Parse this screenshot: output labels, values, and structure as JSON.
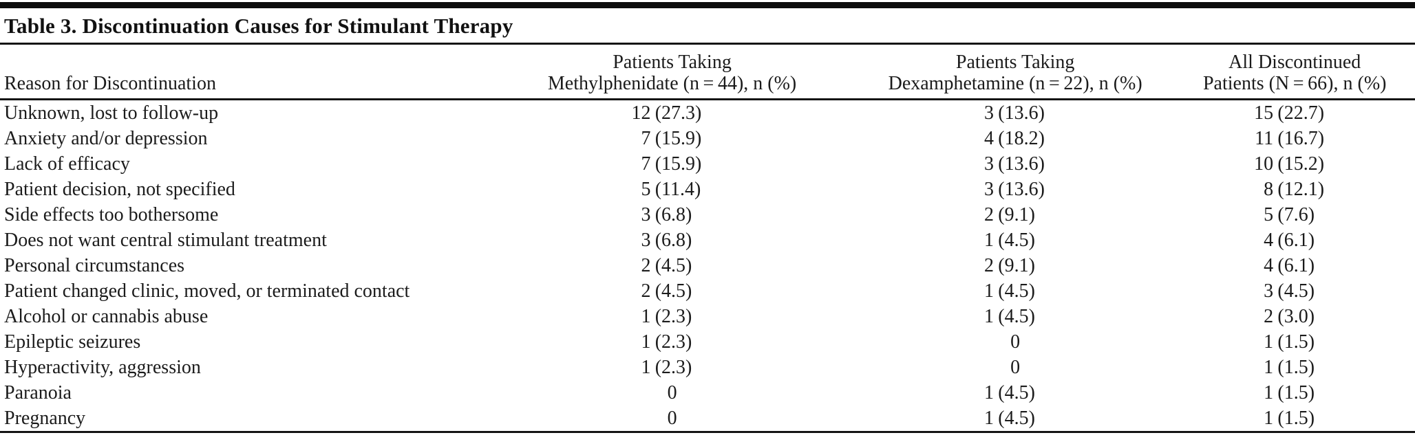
{
  "table": {
    "title": "Table 3. Discontinuation Causes for Stimulant Therapy",
    "header": {
      "reason": "Reason for Discontinuation",
      "col2_line1": "Patients Taking",
      "col2_line2": "Methylphenidate (n = 44), n (%)",
      "col3_line1": "Patients Taking",
      "col3_line2": "Dexamphetamine (n = 22), n (%)",
      "col4_line1": "All Discontinued",
      "col4_line2": "Patients (N = 66), n (%)"
    },
    "rows": [
      [
        "Unknown, lost to follow-up",
        "12 (27.3)",
        "3 (13.6)",
        "15 (22.7)"
      ],
      [
        "Anxiety and/or depression",
        "7 (15.9)",
        "4 (18.2)",
        "11 (16.7)"
      ],
      [
        "Lack of efficacy",
        "7 (15.9)",
        "3 (13.6)",
        "10 (15.2)"
      ],
      [
        "Patient decision, not specified",
        "5 (11.4)",
        "3 (13.6)",
        "8 (12.1)"
      ],
      [
        "Side effects too bothersome",
        "3 (6.8)",
        "2 (9.1)",
        "5 (7.6)"
      ],
      [
        "Does not want central stimulant treatment",
        "3 (6.8)",
        "1 (4.5)",
        "4 (6.1)"
      ],
      [
        "Personal circumstances",
        "2 (4.5)",
        "2 (9.1)",
        "4 (6.1)"
      ],
      [
        "Patient changed clinic, moved, or terminated contact",
        "2 (4.5)",
        "1 (4.5)",
        "3 (4.5)"
      ],
      [
        "Alcohol or cannabis abuse",
        "1 (2.3)",
        "1 (4.5)",
        "2 (3.0)"
      ],
      [
        "Epileptic seizures",
        "1 (2.3)",
        "0",
        "1 (1.5)"
      ],
      [
        "Hyperactivity, aggression",
        "1 (2.3)",
        "0",
        "1 (1.5)"
      ],
      [
        "Paranoia",
        "0",
        "1 (4.5)",
        "1 (1.5)"
      ],
      [
        "Pregnancy",
        "0",
        "1 (4.5)",
        "1 (1.5)"
      ]
    ],
    "colors": {
      "rule": "#141414",
      "text": "#1b1b1b",
      "background": "#ffffff"
    }
  }
}
